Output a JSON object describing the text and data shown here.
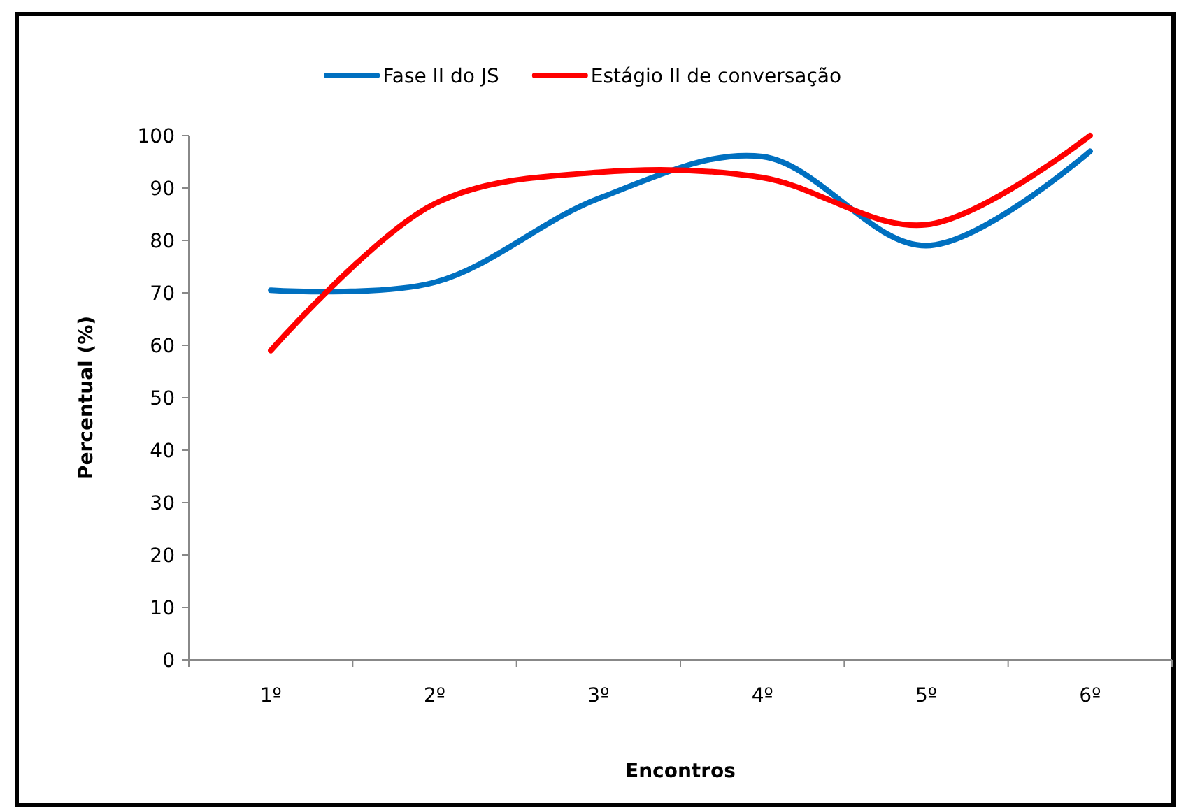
{
  "chart_data": {
    "type": "line",
    "xlabel": "Encontros",
    "ylabel": "Percentual (%)",
    "categories": [
      "1º",
      "2º",
      "3º",
      "4º",
      "5º",
      "6º"
    ],
    "series": [
      {
        "name": "Fase II do JS",
        "color": "#0070c0",
        "values": [
          70.5,
          72,
          88,
          96,
          79,
          97
        ]
      },
      {
        "name": "Estágio II de conversação",
        "color": "#ff0000",
        "values": [
          59,
          87,
          93,
          92,
          83,
          100
        ]
      }
    ],
    "ylim": [
      0,
      100
    ],
    "yticks": [
      0,
      10,
      20,
      30,
      40,
      50,
      60,
      70,
      80,
      90,
      100
    ],
    "grid": false,
    "legend": "top",
    "marker": "none",
    "line_style": "solid"
  }
}
